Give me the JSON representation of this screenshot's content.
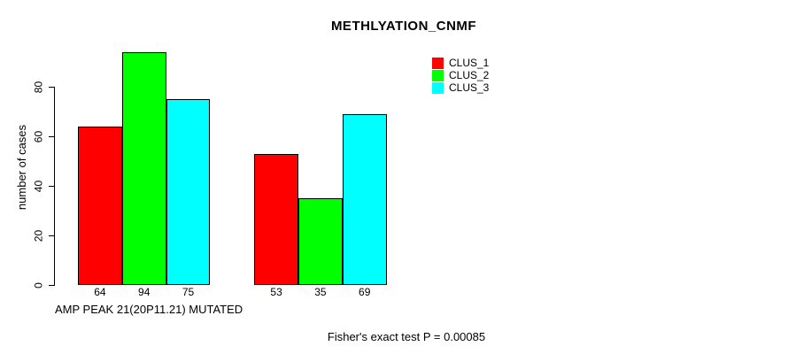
{
  "chart_data": {
    "type": "bar",
    "title": "METHLYATION_CNMF",
    "ylabel": "number of cases",
    "xlabel": "AMP PEAK 21(20P11.21) MUTATED",
    "annotation": "Fisher's exact test P = 0.00085",
    "series": [
      {
        "name": "CLUS_1",
        "color": "#ff0000",
        "values": [
          64,
          53
        ]
      },
      {
        "name": "CLUS_2",
        "color": "#00ff00",
        "values": [
          94,
          35
        ]
      },
      {
        "name": "CLUS_3",
        "color": "#00ffff",
        "values": [
          75,
          69
        ]
      }
    ],
    "bar_value_labels": [
      [
        64,
        94,
        75
      ],
      [
        53,
        35,
        69
      ]
    ],
    "yticks": [
      0,
      20,
      40,
      60,
      80
    ],
    "ylim": [
      0,
      95
    ],
    "grid": false,
    "legend_position": "top-right",
    "bar_border_color": "#000000",
    "background_color": "#ffffff"
  }
}
